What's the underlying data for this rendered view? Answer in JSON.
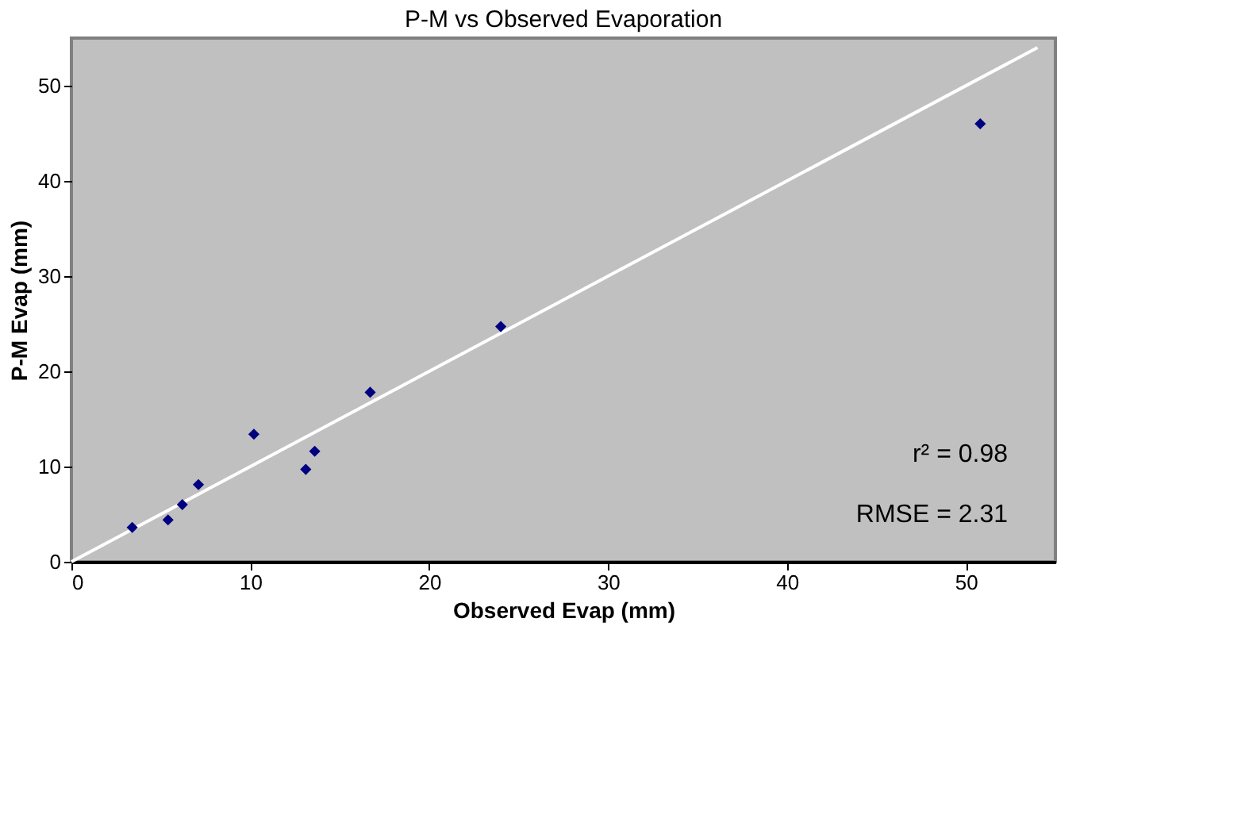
{
  "chart_data": {
    "type": "scatter",
    "title": "P-M vs Observed Evaporation",
    "xlabel": "Observed Evap (mm)",
    "ylabel": "P-M Evap (mm)",
    "xlim": [
      0,
      55
    ],
    "ylim": [
      0,
      55
    ],
    "xticks": [
      0,
      10,
      20,
      30,
      40,
      50
    ],
    "yticks": [
      0,
      10,
      20,
      30,
      40,
      50
    ],
    "grid": false,
    "series": [
      {
        "color": "#000080",
        "marker": "diamond",
        "x": [
          3.4,
          5.4,
          6.2,
          7.1,
          10.2,
          13.1,
          13.6,
          16.7,
          24.0,
          50.8
        ],
        "values": [
          3.6,
          4.4,
          6.0,
          8.1,
          13.4,
          9.7,
          11.6,
          17.8,
          24.7,
          46.0
        ]
      },
      {
        "type": "line",
        "color": "#ffffff",
        "x": [
          0,
          54
        ],
        "values": [
          0,
          54
        ],
        "line_style": "solid",
        "marker": "none"
      }
    ],
    "annotations": [
      {
        "text": "r² = 0.98"
      },
      {
        "text": "RMSE = 2.31"
      }
    ]
  }
}
